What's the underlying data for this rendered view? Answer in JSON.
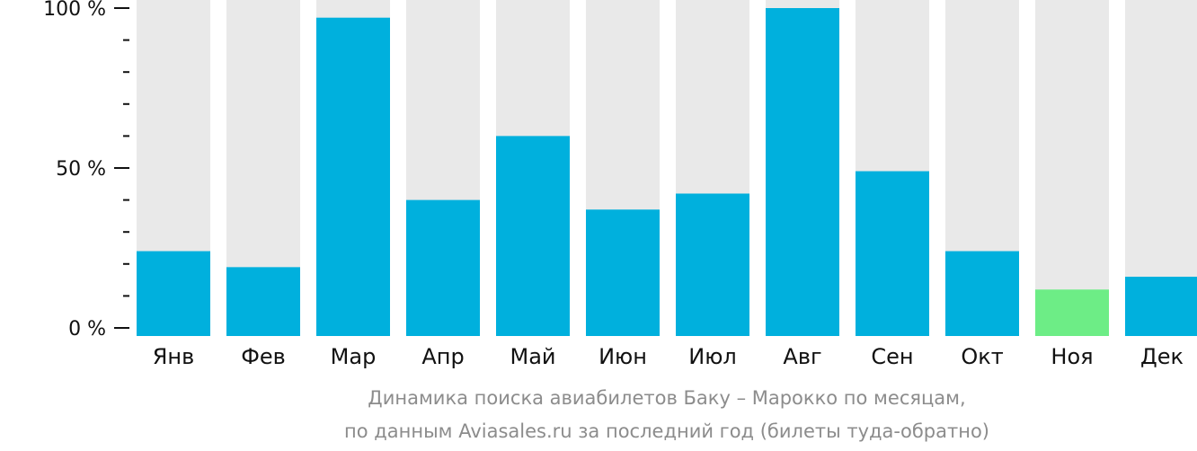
{
  "chart_data": {
    "type": "bar",
    "categories": [
      "Янв",
      "Фев",
      "Мар",
      "Апр",
      "Май",
      "Июн",
      "Июл",
      "Авг",
      "Сен",
      "Окт",
      "Ноя",
      "Дек"
    ],
    "values": [
      24,
      19,
      97,
      40,
      60,
      37,
      42,
      100,
      49,
      24,
      12,
      16
    ],
    "highlight_index": 10,
    "ylim": [
      0,
      100
    ],
    "yticks": [
      {
        "value": 0,
        "label": "0 %"
      },
      {
        "value": 50,
        "label": "50 %"
      },
      {
        "value": 100,
        "label": "100 %"
      }
    ],
    "minor_ticks": [
      10,
      20,
      30,
      40,
      60,
      70,
      80,
      90
    ],
    "colors": {
      "bar": "#00b0dd",
      "highlight": "#6ded86",
      "background_bar": "#e9e9e9",
      "axis": "#111111"
    },
    "caption_line1": "Динамика поиска авиабилетов Баку – Марокко по месяцам,",
    "caption_line2": "по данным Aviasales.ru за последний год (билеты туда-обратно)"
  }
}
